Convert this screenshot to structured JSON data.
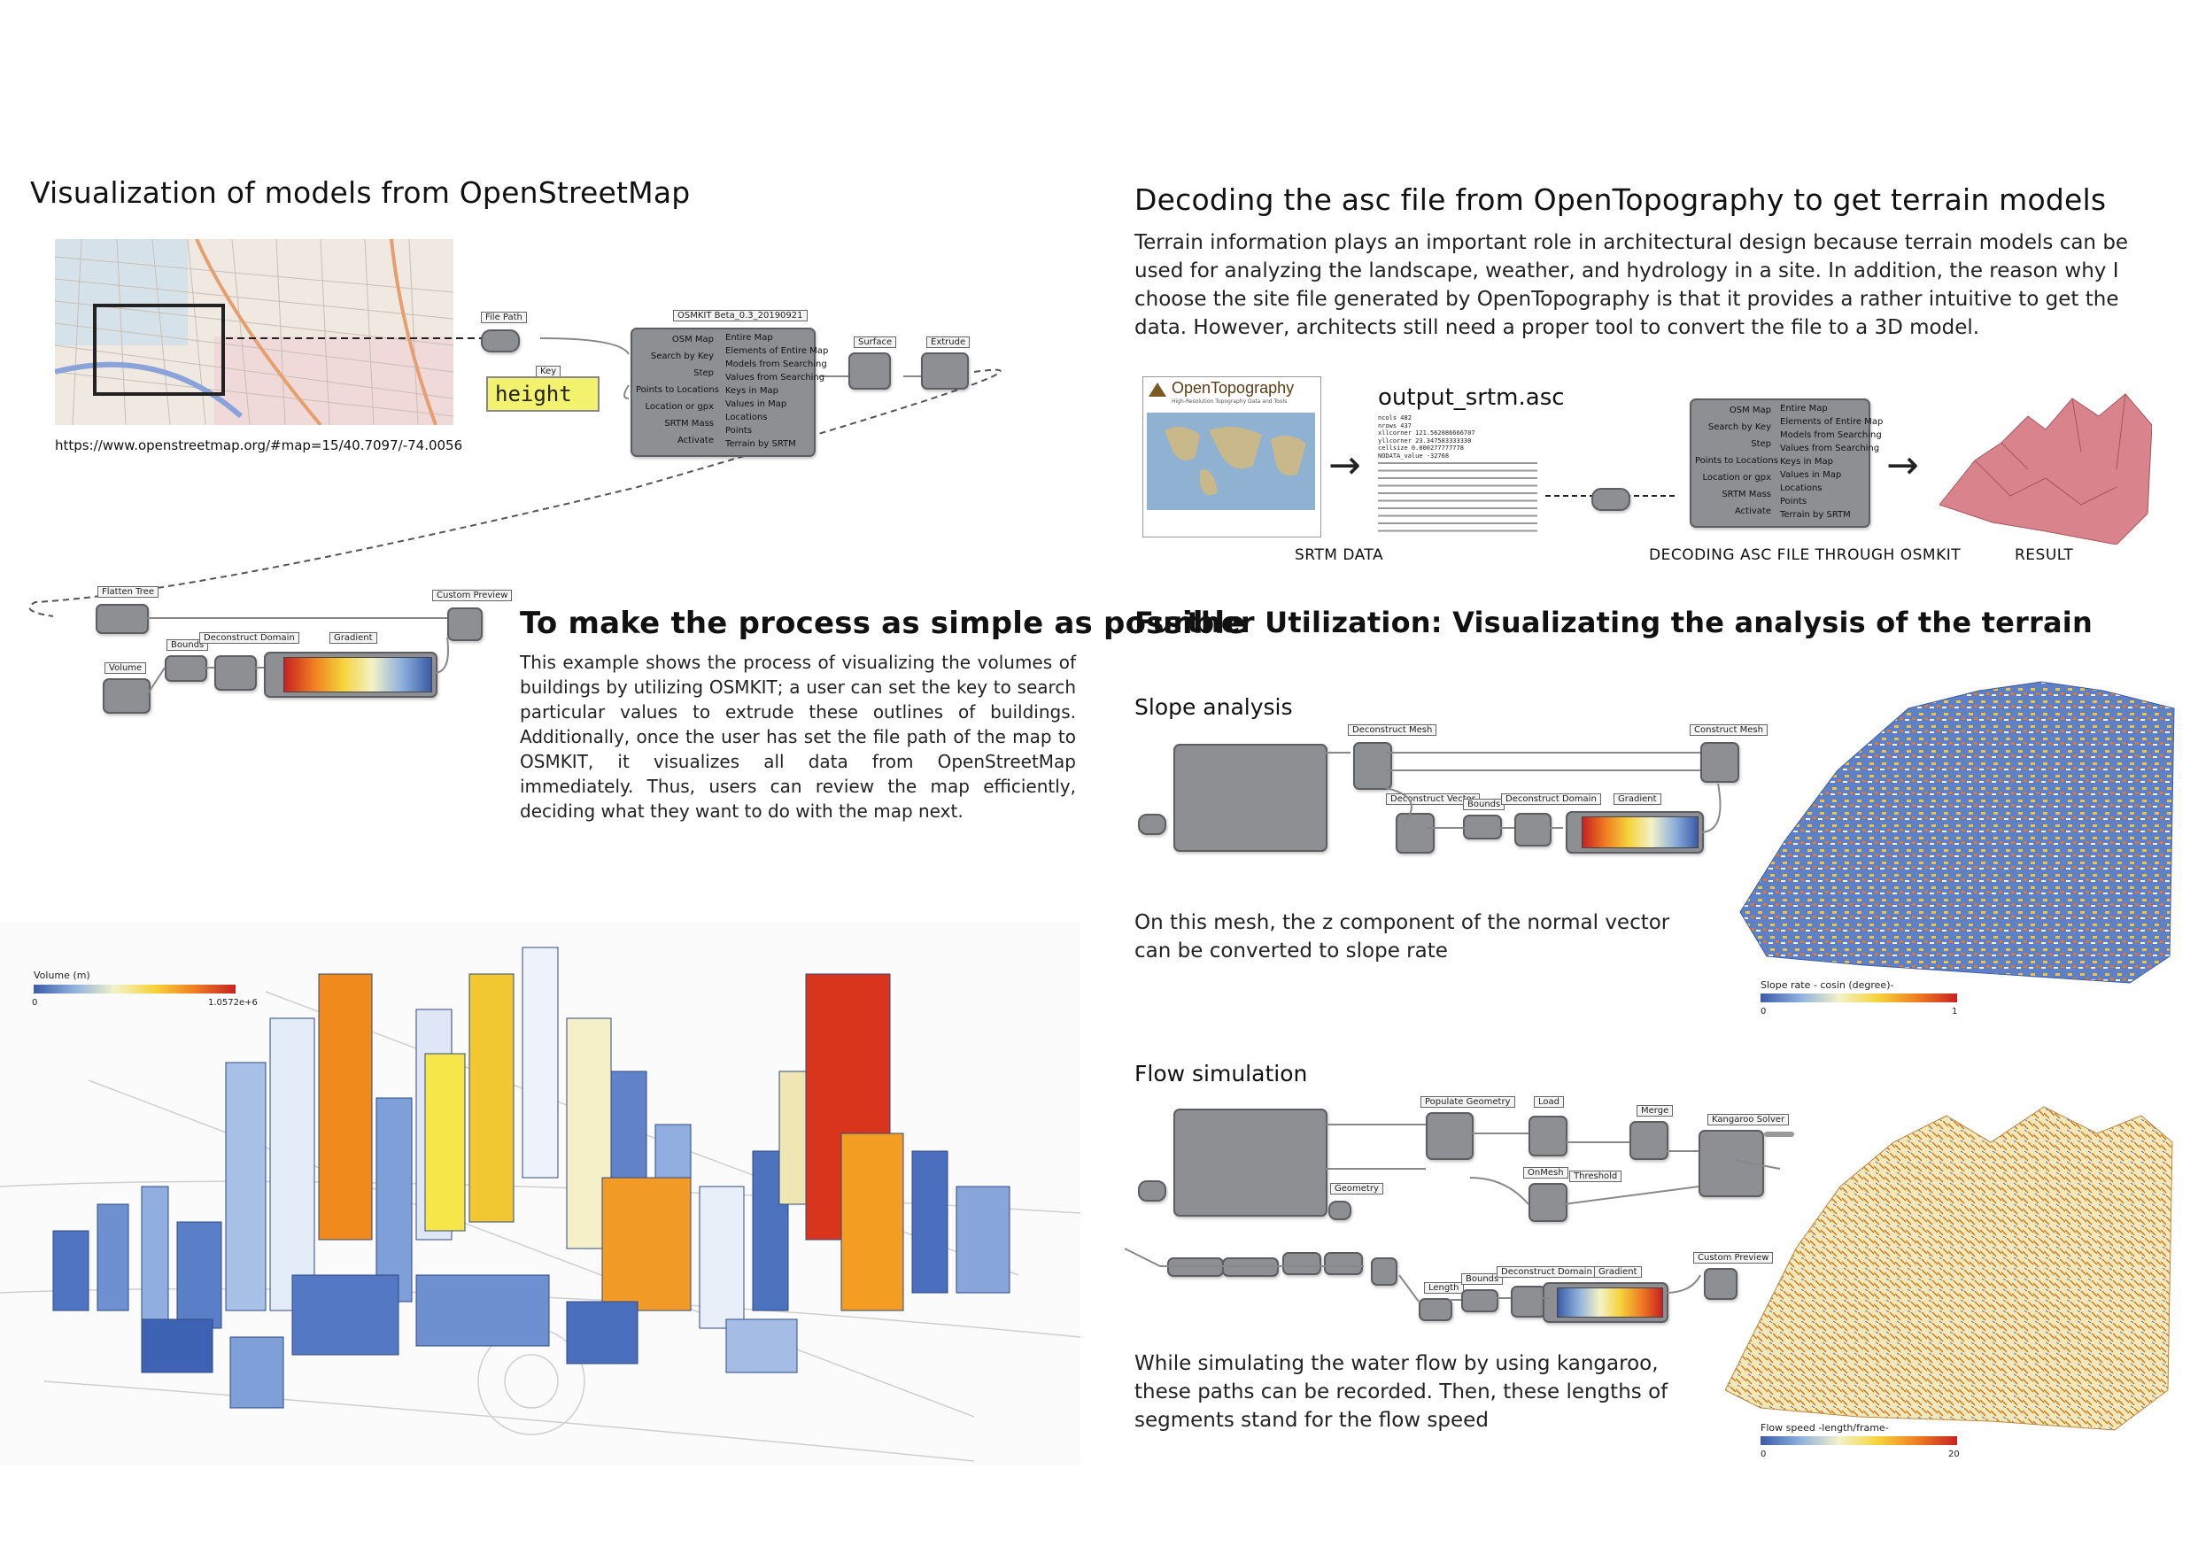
{
  "left": {
    "title": "Visualization of models from OpenStreetMap",
    "map_url": "https://www.openstreetmap.org/#map=15/40.7097/-74.0056",
    "file_path_label": "File Path",
    "key_label": "Key",
    "key_value": "height",
    "osmkit_header": "OSMKIT Beta_0.3_20190921",
    "osmkit_inputs": [
      "OSM Map",
      "Search by Key",
      "Step",
      "Points to Locations",
      "Location or gpx",
      "SRTM Mass",
      "Activate"
    ],
    "osmkit_outputs": [
      "Entire Map",
      "Elements of Entire Map",
      "Models from Searching",
      "Values from Searching",
      "Keys in Map",
      "Values in Map",
      "Locations",
      "Points",
      "Terrain by SRTM"
    ],
    "surface_label": "Surface",
    "extrude_label": "Extrude",
    "flatten_tree_label": "Flatten Tree",
    "custom_preview_label": "Custom Preview",
    "volume_label": "Volume",
    "bounds_label": "Bounds",
    "deconstruct_domain_label": "Deconstruct Domain",
    "gradient_label": "Gradient",
    "process_title": "To make the process as simple as possible",
    "process_text": "This example shows the process of visualizing the volumes of buildings by utilizing OSMKIT; a user can set the key to search particular values to extrude these outlines of buildings. Additionally, once the user has set the file path of the map to OSMKIT, it visualizes all data from OpenStreetMap immediately. Thus, users can review the map efficiently, deciding what they want to do with the map next.",
    "volume_legend": {
      "title": "Volume (m)",
      "min": "0",
      "max": "1.0572e+6"
    }
  },
  "right": {
    "title": "Decoding the asc file from OpenTopography to get terrain models",
    "intro": "Terrain information plays an important role in architectural design because terrain models can be used for analyzing the landscape, weather, and hydrology in a site. In addition, the reason why I choose the site file generated by OpenTopography is that it provides a rather intuitive to get the data. However, architects still need a proper tool to convert the file to a 3D model.",
    "opentopo_brand": "OpenTopography",
    "opentopo_tagline": "High-Resolution Topography Data and Tools",
    "asc_filename": "output_srtm.asc",
    "asc_header": [
      "ncols        482",
      "nrows        437",
      "xllcorner    121.562086666707",
      "yllcorner    23.347583333330",
      "cellsize     0.000277777778",
      "NODATA_value -32768"
    ],
    "captions": [
      "SRTM DATA",
      "DECODING ASC FILE THROUGH OSMKIT",
      "RESULT"
    ],
    "further_title": "Further Utilization: Visualizating the analysis of the terrain",
    "slope": {
      "title": "Slope analysis",
      "text": "On this mesh, the z component of the normal vector can be converted to slope rate",
      "legend": {
        "title": "Slope rate - cosin (degree)-",
        "min": "0",
        "max": "1"
      },
      "nodes": [
        "Deconstruct Mesh",
        "Construct Mesh",
        "Deconstruct Vector",
        "Bounds",
        "Deconstruct Domain",
        "Gradient"
      ]
    },
    "flow": {
      "title": "Flow simulation",
      "text": "While simulating the water flow by using kangaroo, these paths can be recorded. Then, these lengths of segments stand for the flow speed",
      "legend": {
        "title": "Flow speed -length/frame-",
        "min": "0",
        "max": "20"
      },
      "nodes": [
        "Populate Geometry",
        "Load",
        "Merge",
        "Kangaroo Solver",
        "OnMesh",
        "Threshold",
        "Geometry",
        "Length",
        "Bounds",
        "Deconstruct Domain",
        "Gradient",
        "Custom Preview"
      ]
    }
  },
  "colors": {
    "gradient_low": "#3b5ba8",
    "gradient_mid": "#f5d33a",
    "gradient_high": "#c62222",
    "terrain_pink": "#d9848c"
  }
}
